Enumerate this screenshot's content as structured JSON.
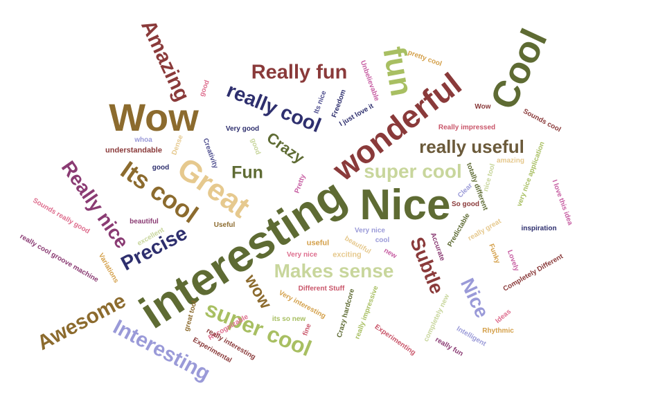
{
  "words": [
    {
      "id": "interesting",
      "text": "interesting",
      "color": "olive-green"
    },
    {
      "id": "nice-big",
      "text": "Nice",
      "color": "olive-green"
    },
    {
      "id": "wonderful",
      "text": "wonderful",
      "color": "dark-red"
    },
    {
      "id": "cool-big",
      "text": "Cool",
      "color": "olive-green"
    },
    {
      "id": "wow-big",
      "text": "Wow",
      "color": "brown-gold"
    },
    {
      "id": "great",
      "text": "Great",
      "color": "beige"
    },
    {
      "id": "fun-big",
      "text": "fun",
      "color": "lime"
    },
    {
      "id": "amazing",
      "text": "Amazing",
      "color": "dark-red"
    },
    {
      "id": "really-fun",
      "text": "Really fun",
      "color": "dark-red"
    },
    {
      "id": "really-cool",
      "text": "really cool",
      "color": "navy"
    },
    {
      "id": "its-cool",
      "text": "Its cool",
      "color": "brown-gold"
    },
    {
      "id": "really-nice",
      "text": "Really nice",
      "color": "purple"
    },
    {
      "id": "precise",
      "text": "Precise",
      "color": "navy"
    },
    {
      "id": "awesome",
      "text": "Awesome",
      "color": "brown-gold"
    },
    {
      "id": "interesting-2",
      "text": "Interesting",
      "color": "periwinkle"
    },
    {
      "id": "super-cool-1",
      "text": "super cool",
      "color": "lime"
    },
    {
      "id": "super-cool-2",
      "text": "super cool",
      "color": "pale-green"
    },
    {
      "id": "makes-sense",
      "text": "Makes sense",
      "color": "pale-green"
    },
    {
      "id": "really-useful",
      "text": "really useful",
      "color": "dark-brown"
    },
    {
      "id": "crazy",
      "text": "Crazy",
      "color": "olive-green"
    },
    {
      "id": "fun-2",
      "text": "Fun",
      "color": "olive-green"
    },
    {
      "id": "wow-2",
      "text": "wow",
      "color": "brown-gold"
    },
    {
      "id": "subtle",
      "text": "Subtle",
      "color": "dark-red"
    },
    {
      "id": "nice-2",
      "text": "Nice",
      "color": "periwinkle"
    },
    {
      "id": "pretty-cool",
      "text": "pretty cool",
      "color": "orange-beige"
    },
    {
      "id": "unbelievable",
      "text": "Unbelievable",
      "color": "magenta"
    },
    {
      "id": "freedom",
      "text": "Freedom",
      "color": "navy"
    },
    {
      "id": "its-nice",
      "text": "Its nice",
      "color": "slate-blue"
    },
    {
      "id": "i-just-love-it",
      "text": "I just love it",
      "color": "navy"
    },
    {
      "id": "wow-small",
      "text": "Wow",
      "color": "dark-red"
    },
    {
      "id": "sounds-cool",
      "text": "Sounds cool",
      "color": "dark-red"
    },
    {
      "id": "really-impressed",
      "text": "Really impressed",
      "color": "rose"
    },
    {
      "id": "very-good",
      "text": "Very good",
      "color": "navy"
    },
    {
      "id": "good-1",
      "text": "good",
      "color": "pink"
    },
    {
      "id": "whoa",
      "text": "whoa",
      "color": "periwinkle"
    },
    {
      "id": "understandable",
      "text": "understandable",
      "color": "dark-red"
    },
    {
      "id": "dense",
      "text": "Dense",
      "color": "beige"
    },
    {
      "id": "creativity",
      "text": "Creativity",
      "color": "slate-blue"
    },
    {
      "id": "good-2",
      "text": "good",
      "color": "pale-green"
    },
    {
      "id": "good-3",
      "text": "good",
      "color": "navy"
    },
    {
      "id": "amazing-small",
      "text": "amazing",
      "color": "beige"
    },
    {
      "id": "very-nice-app",
      "text": "very nice application",
      "color": "lime"
    },
    {
      "id": "nice-tool",
      "text": "nice tool",
      "color": "pale-green"
    },
    {
      "id": "totally-different",
      "text": "totally different",
      "color": "olive-green"
    },
    {
      "id": "i-love-this-idea",
      "text": "I love this idea",
      "color": "magenta"
    },
    {
      "id": "clear",
      "text": "Clear",
      "color": "periwinkle"
    },
    {
      "id": "so-good",
      "text": "So good",
      "color": "dark-red"
    },
    {
      "id": "predictable",
      "text": "Predictable",
      "color": "olive-green"
    },
    {
      "id": "really-great",
      "text": "really great",
      "color": "beige"
    },
    {
      "id": "inspiration",
      "text": "inspiration",
      "color": "navy"
    },
    {
      "id": "accurate",
      "text": "Accurate",
      "color": "purple"
    },
    {
      "id": "funky",
      "text": "Funky",
      "color": "orange-beige"
    },
    {
      "id": "lovely",
      "text": "Lovely",
      "color": "magenta"
    },
    {
      "id": "completely-different",
      "text": "Completely Different",
      "color": "dark-red"
    },
    {
      "id": "pretty",
      "text": "Pretty",
      "color": "magenta"
    },
    {
      "id": "sounds-really-good",
      "text": "Sounds really good",
      "color": "pink"
    },
    {
      "id": "beautiful-1",
      "text": "beautiful",
      "color": "purple"
    },
    {
      "id": "excellent",
      "text": "excellent",
      "color": "pale-green"
    },
    {
      "id": "useful-1",
      "text": "Useful",
      "color": "brown-gold"
    },
    {
      "id": "useful-2",
      "text": "useful",
      "color": "orange-beige"
    },
    {
      "id": "very-nice-1",
      "text": "Very nice",
      "color": "periwinkle"
    },
    {
      "id": "very-nice-2",
      "text": "Very nice",
      "color": "pink"
    },
    {
      "id": "cool-small",
      "text": "cool",
      "color": "periwinkle"
    },
    {
      "id": "beautiful-2",
      "text": "beautiful",
      "color": "beige"
    },
    {
      "id": "exciting",
      "text": "exciting",
      "color": "beige"
    },
    {
      "id": "new",
      "text": "new",
      "color": "magenta"
    },
    {
      "id": "really-cool-groove",
      "text": "really cool groove machine",
      "color": "purple"
    },
    {
      "id": "variations",
      "text": "Variations",
      "color": "orange-beige"
    },
    {
      "id": "different-stuff",
      "text": "Different Stuff",
      "color": "rose"
    },
    {
      "id": "very-interesting",
      "text": "Very interesting",
      "color": "orange-beige"
    },
    {
      "id": "its-so-new",
      "text": "its so new",
      "color": "lime"
    },
    {
      "id": "great-tool",
      "text": "great tool",
      "color": "brown-gold"
    },
    {
      "id": "recognizable",
      "text": "Recognizable",
      "color": "pink"
    },
    {
      "id": "fine",
      "text": "fine",
      "color": "rose"
    },
    {
      "id": "really-interesting",
      "text": "really interesting",
      "color": "dark-red"
    },
    {
      "id": "experimental",
      "text": "Experimental",
      "color": "dark-red"
    },
    {
      "id": "crazy-hardcore",
      "text": "Crazy hardcore",
      "color": "olive-green"
    },
    {
      "id": "really-impressive",
      "text": "really impressive",
      "color": "lime"
    },
    {
      "id": "experimenting",
      "text": "Experimenting",
      "color": "rose"
    },
    {
      "id": "completely-new",
      "text": "completely new",
      "color": "pale-green"
    },
    {
      "id": "intelligent",
      "text": "Intelligent",
      "color": "periwinkle"
    },
    {
      "id": "ideas",
      "text": "Ideas",
      "color": "pink"
    },
    {
      "id": "rhythmic",
      "text": "Rhythmic",
      "color": "orange-beige"
    },
    {
      "id": "really-fun-small",
      "text": "really fun",
      "color": "purple"
    }
  ]
}
